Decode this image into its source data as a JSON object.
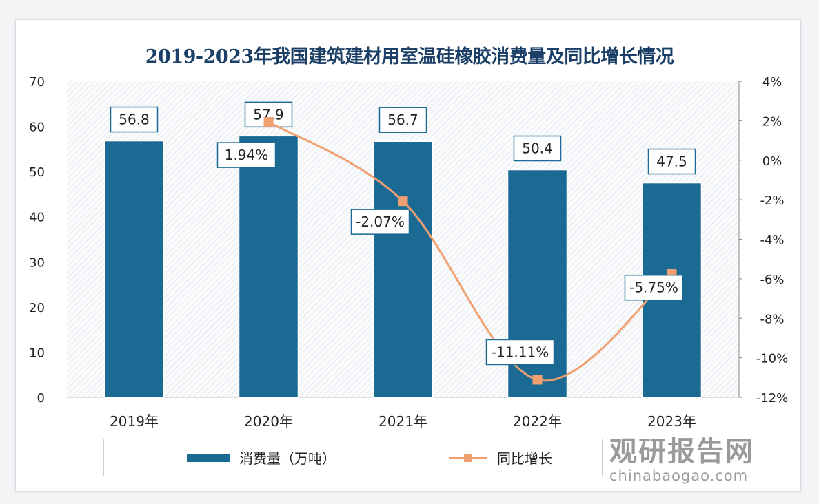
{
  "chart_data": {
    "type": "bar+line",
    "title": "2019-2023年我国建筑建材用室温硅橡胶消费量及同比增长情况",
    "categories": [
      "2019年",
      "2020年",
      "2021年",
      "2022年",
      "2023年"
    ],
    "series": [
      {
        "name": "消费量（万吨）",
        "type": "bar",
        "axis": "left",
        "values": [
          56.8,
          57.9,
          56.7,
          50.4,
          47.5
        ],
        "labels": [
          "56.8",
          "57.9",
          "56.7",
          "50.4",
          "47.5"
        ],
        "color": "#1a6a94"
      },
      {
        "name": "同比增长",
        "type": "line",
        "axis": "right",
        "values": [
          null,
          1.94,
          -2.07,
          -11.11,
          -5.75
        ],
        "labels": [
          "",
          "1.94%",
          "-2.07%",
          "-11.11%",
          "-5.75%"
        ],
        "color": "#f0a070"
      }
    ],
    "left_axis": {
      "ylim": [
        0,
        70
      ],
      "ticks": [
        "0",
        "10",
        "20",
        "30",
        "40",
        "50",
        "60",
        "70"
      ]
    },
    "right_axis": {
      "ylim": [
        -12,
        4
      ],
      "ticks": [
        "-12%",
        "-10%",
        "-8%",
        "-6%",
        "-4%",
        "-2%",
        "0%",
        "2%",
        "4%"
      ]
    },
    "legend_position": "bottom"
  },
  "watermark": {
    "name": "观研报告网",
    "url": "chinabaogao.com"
  }
}
